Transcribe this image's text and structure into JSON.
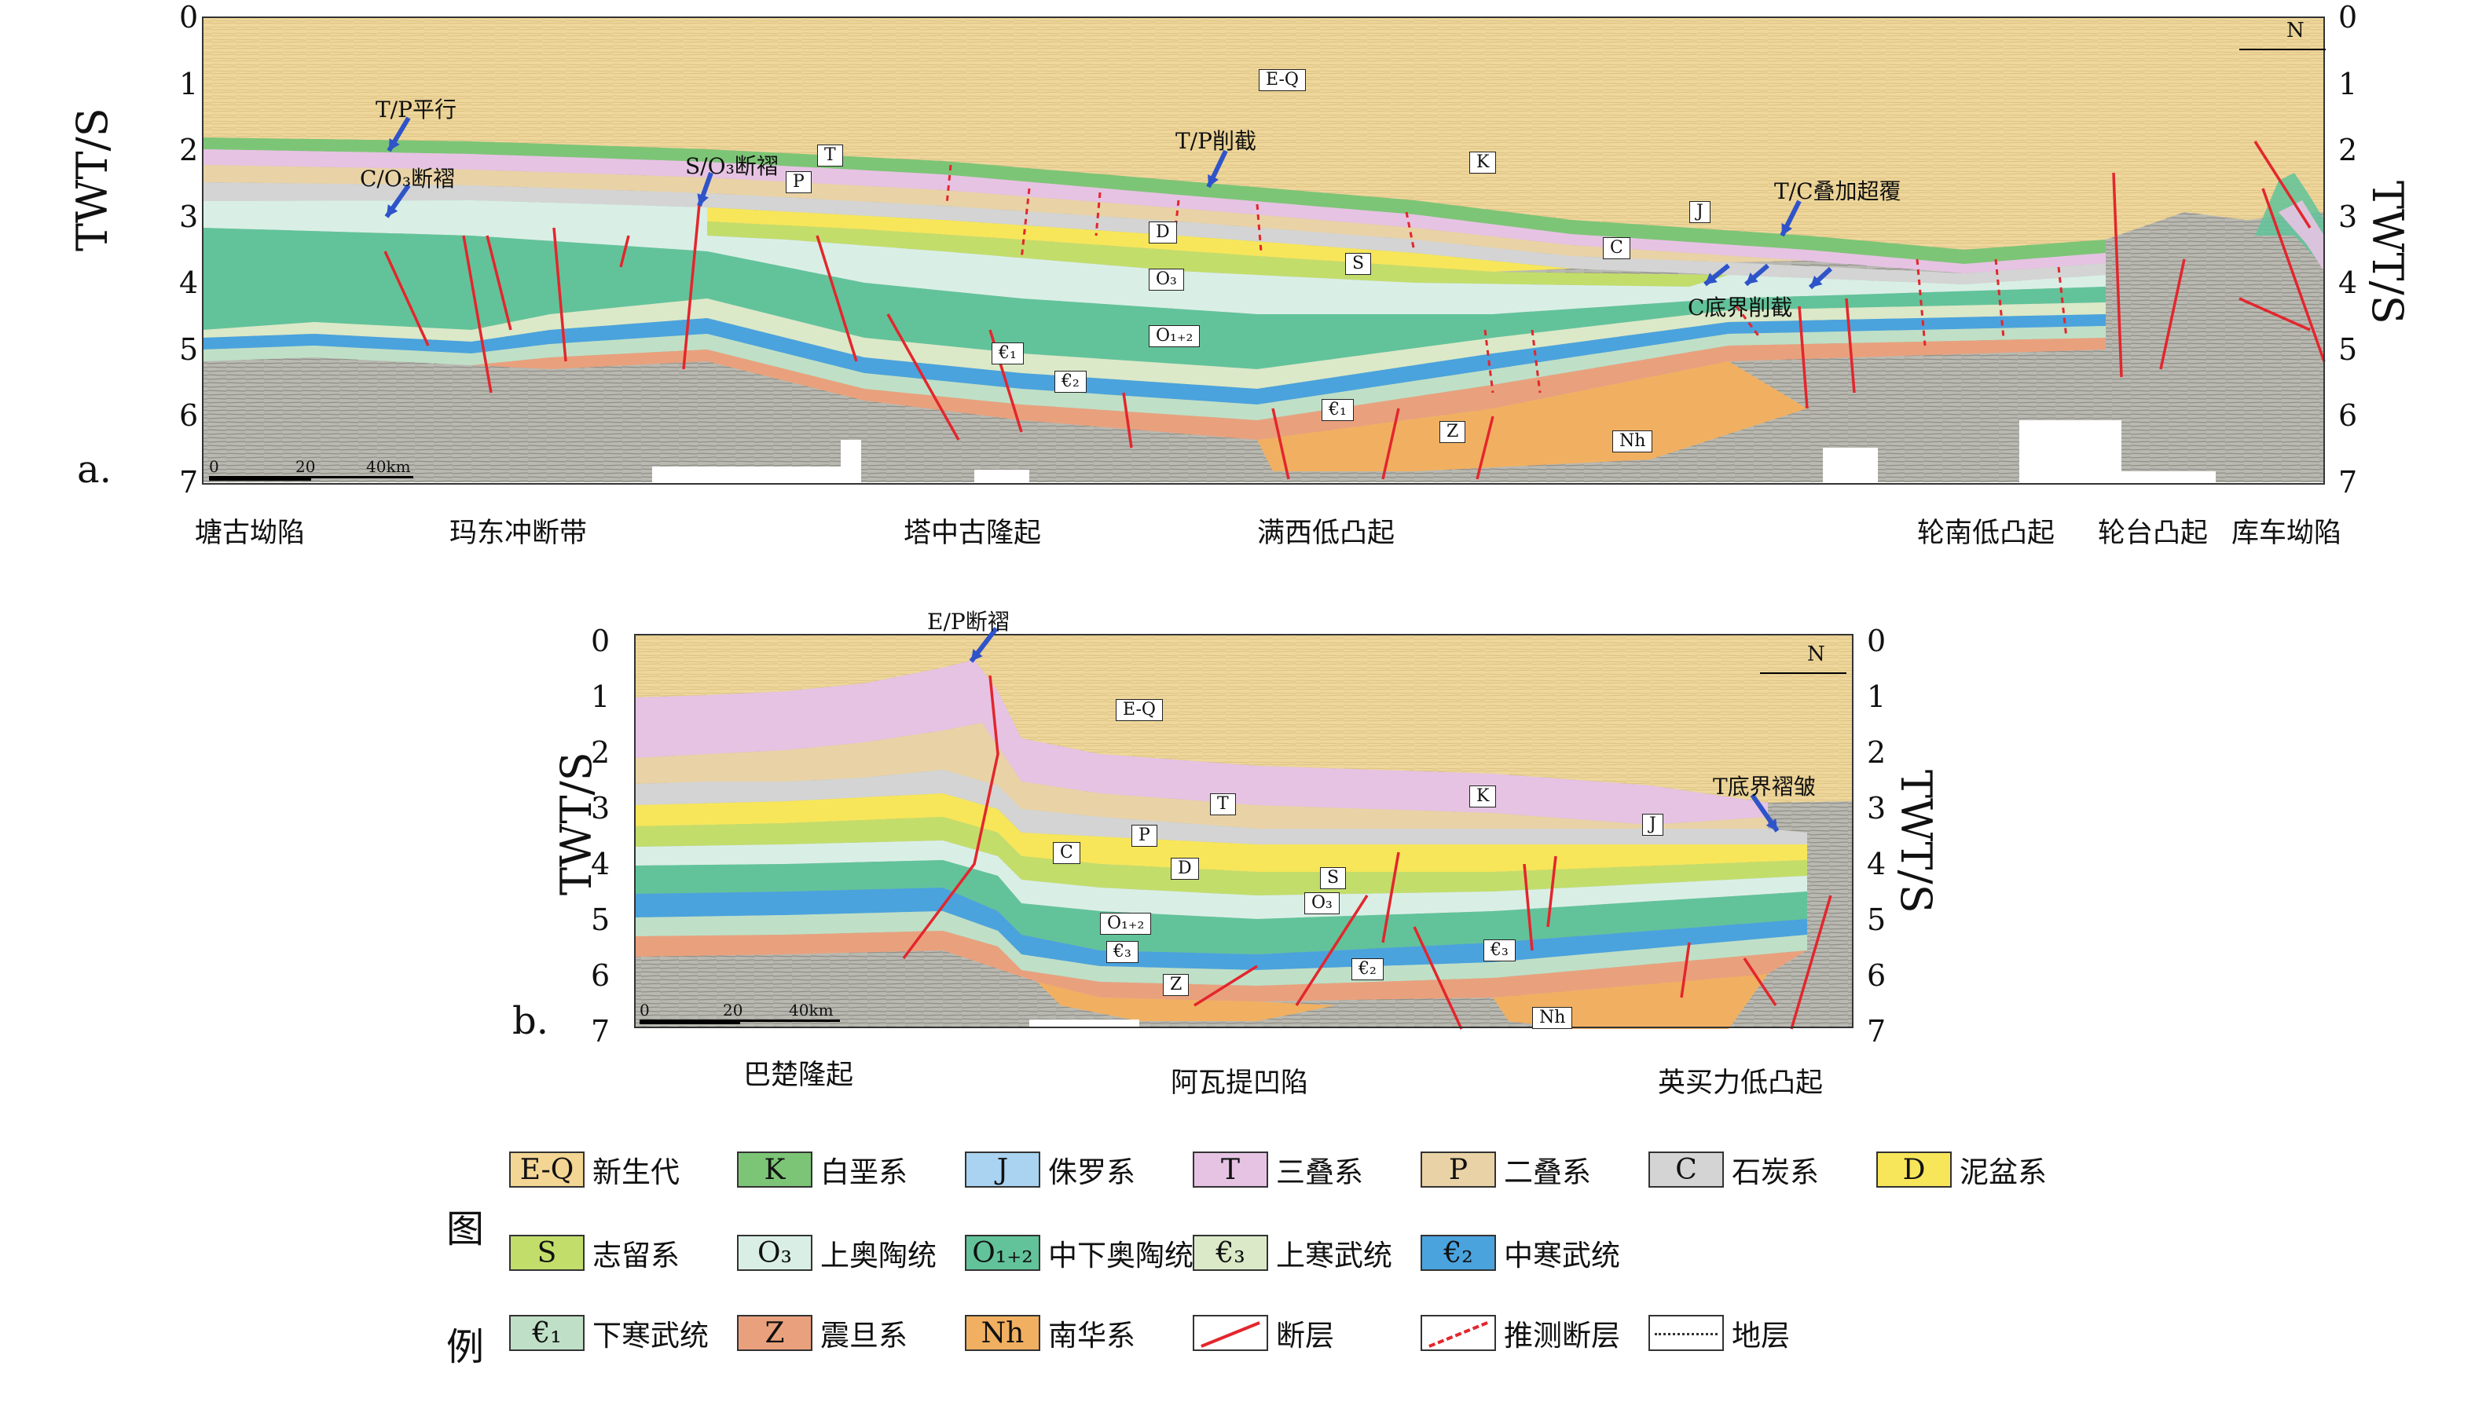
{
  "panel_a": {
    "label": "a.",
    "axis_title": "TWT/S",
    "ticks": [
      "0",
      "1",
      "2",
      "3",
      "4",
      "5",
      "6",
      "7"
    ],
    "scale": {
      "zero": "0",
      "mid": "20",
      "end": "40km"
    },
    "north": "N",
    "regions": [
      "塘古坳陷",
      "玛东冲断带",
      "塔中古隆起",
      "满西低凸起",
      "轮南低凸起",
      "轮台凸起",
      "库车坳陷"
    ],
    "units": [
      "E-Q",
      "K",
      "J",
      "T",
      "P",
      "C",
      "D",
      "S",
      "O₃",
      "O₁₊₂",
      "€₁",
      "€₂",
      "€₁",
      "Z",
      "Nh"
    ],
    "annotations": [
      "T/P平行",
      "C/O₃断褶",
      "S/O₃断褶",
      "T/P削截",
      "T/C叠加超覆",
      "C底界削截"
    ]
  },
  "panel_b": {
    "label": "b.",
    "axis_title": "TWT/S",
    "ticks": [
      "0",
      "1",
      "2",
      "3",
      "4",
      "5",
      "6",
      "7"
    ],
    "scale": {
      "zero": "0",
      "mid": "20",
      "end": "40km"
    },
    "north": "N",
    "regions": [
      "巴楚隆起",
      "阿瓦提凹陷",
      "英买力低凸起"
    ],
    "units": [
      "E-Q",
      "K",
      "T",
      "J",
      "P",
      "C",
      "D",
      "S",
      "O₃",
      "O₁₊₂",
      "€₃",
      "€₃",
      "€₂",
      "Z",
      "Nh"
    ],
    "annotations": [
      "E/P断褶",
      "T底界褶皱"
    ]
  },
  "legend": {
    "title": "图例",
    "items": [
      {
        "code": "E-Q",
        "name": "新生代",
        "color": "#f3d594"
      },
      {
        "code": "K",
        "name": "白垩系",
        "color": "#7cc576"
      },
      {
        "code": "J",
        "name": "侏罗系",
        "color": "#a9d3f0"
      },
      {
        "code": "T",
        "name": "三叠系",
        "color": "#e6c3e3"
      },
      {
        "code": "P",
        "name": "二叠系",
        "color": "#e9d3a6"
      },
      {
        "code": "C",
        "name": "石炭系",
        "color": "#d4d4d4"
      },
      {
        "code": "D",
        "name": "泥盆系",
        "color": "#f7e65a"
      },
      {
        "code": "S",
        "name": "志留系",
        "color": "#c3dd6b"
      },
      {
        "code": "O₃",
        "name": "上奥陶统",
        "color": "#d9efe6"
      },
      {
        "code": "O₁₊₂",
        "name": "中下奥陶统",
        "color": "#62c39a"
      },
      {
        "code": "€₃",
        "name": "上寒武统",
        "color": "#dbe9c8"
      },
      {
        "code": "€₂",
        "name": "中寒武统",
        "color": "#4aa3dd"
      },
      {
        "code": "€₁",
        "name": "下寒武统",
        "color": "#bfe0c7"
      },
      {
        "code": "Z",
        "name": "震旦系",
        "color": "#e9a17d"
      },
      {
        "code": "Nh",
        "name": "南华系",
        "color": "#f1b061"
      },
      {
        "code": "",
        "name": "断层",
        "color": "#e3262d"
      },
      {
        "code": "",
        "name": "推测断层",
        "color": "#e3262d"
      },
      {
        "code": "",
        "name": "地层",
        "color": "#333333"
      }
    ]
  }
}
